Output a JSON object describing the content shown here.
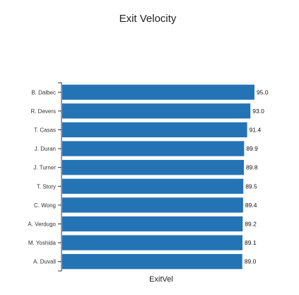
{
  "chart_data": {
    "type": "bar",
    "orientation": "horizontal",
    "title": "Exit Velocity",
    "xlabel": "ExitVel",
    "ylabel": "",
    "categories": [
      "B. Dalbec",
      "R. Devers",
      "T. Casas",
      "J. Duran",
      "J. Turner",
      "T. Story",
      "C. Wong",
      "A. Verdugo",
      "M. Yoshida",
      "A. Duvall"
    ],
    "values": [
      95.0,
      93.0,
      91.4,
      89.9,
      89.8,
      89.5,
      89.4,
      89.2,
      89.1,
      89.0
    ],
    "value_labels": [
      "95.0",
      "93.0",
      "91.4",
      "89.9",
      "89.8",
      "89.5",
      "89.4",
      "89.2",
      "89.1",
      "89.0"
    ],
    "xlim": [
      0,
      95.0
    ],
    "grid": false,
    "legend": "none",
    "bar_color": "#2474b5"
  }
}
